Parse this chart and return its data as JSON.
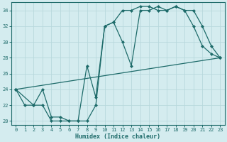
{
  "xlabel": "Humidex (Indice chaleur)",
  "bg_color": "#d4ecef",
  "grid_color": "#b8d8dc",
  "line_color": "#1e6b6a",
  "xlim": [
    -0.5,
    23.5
  ],
  "ylim": [
    19.5,
    35.0
  ],
  "xticks": [
    0,
    1,
    2,
    3,
    4,
    5,
    6,
    7,
    8,
    9,
    10,
    11,
    12,
    13,
    14,
    15,
    16,
    17,
    18,
    19,
    20,
    21,
    22,
    23
  ],
  "yticks": [
    20,
    22,
    24,
    26,
    28,
    30,
    32,
    34
  ],
  "curve1_x": [
    0,
    1,
    2,
    3,
    4,
    5,
    6,
    7,
    8,
    9,
    10,
    11,
    12,
    13,
    14,
    15,
    16,
    17,
    18,
    19,
    20,
    21,
    22,
    23
  ],
  "curve1_y": [
    24,
    22,
    22,
    24,
    20.5,
    20.5,
    20,
    20,
    27,
    23,
    32,
    32.5,
    30,
    27,
    34,
    34,
    34.5,
    34,
    34.5,
    34,
    34,
    32,
    29.5,
    28
  ],
  "curve2_x": [
    0,
    2,
    3,
    4,
    5,
    6,
    7,
    8,
    9,
    10,
    11,
    12,
    13,
    14,
    15,
    16,
    17,
    18,
    19,
    20,
    21,
    22,
    23
  ],
  "curve2_y": [
    24,
    22,
    22,
    20,
    20,
    20,
    20,
    20,
    22,
    32,
    32.5,
    34,
    34,
    34.5,
    34.5,
    34,
    34,
    34.5,
    34,
    32,
    29.5,
    28.5,
    28
  ],
  "curve3_x": [
    0,
    23
  ],
  "curve3_y": [
    24,
    28
  ]
}
